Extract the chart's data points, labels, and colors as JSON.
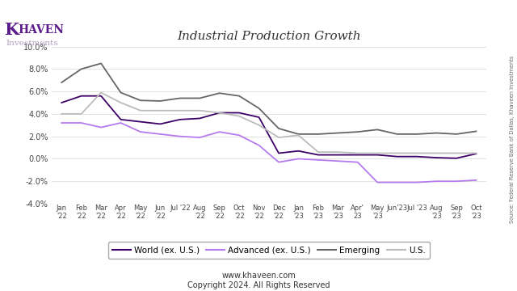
{
  "title": "Industrial Production Growth",
  "ylim": [
    -4.0,
    10.0
  ],
  "yticks": [
    -4.0,
    -2.0,
    0.0,
    2.0,
    4.0,
    6.0,
    8.0,
    10.0
  ],
  "x_labels": [
    "Jan\n'22",
    "Feb\n'22",
    "Mar\n'22",
    "Apr\n'22",
    "May\n'22",
    "Jun\n'22",
    "Jul '22",
    "Aug\n'22",
    "Sep\n'22",
    "Oct\n'22",
    "Nov\n'22",
    "Dec\n'22",
    "Jan\n'23",
    "Feb\n'23",
    "Mar\n'23",
    "Apr'\n23",
    "May\n'23",
    "Jun'23",
    "Jul '23",
    "Aug\n'23",
    "Sep\n'23",
    "Oct\n'23"
  ],
  "world_ex_us": [
    5.0,
    5.6,
    5.6,
    3.5,
    3.3,
    3.1,
    3.5,
    3.6,
    4.1,
    4.1,
    3.7,
    0.5,
    0.7,
    0.35,
    0.35,
    0.35,
    0.35,
    0.2,
    0.2,
    0.1,
    0.05,
    0.45
  ],
  "advanced_ex_us": [
    3.2,
    3.2,
    2.8,
    3.2,
    2.4,
    2.2,
    2.0,
    1.9,
    2.4,
    2.1,
    1.2,
    -0.3,
    0.0,
    -0.1,
    -0.2,
    -0.3,
    -2.1,
    -2.1,
    -2.1,
    -2.0,
    -2.0,
    -1.9
  ],
  "emerging": [
    6.8,
    8.0,
    8.5,
    5.9,
    5.2,
    5.15,
    5.4,
    5.4,
    5.85,
    5.6,
    4.5,
    2.7,
    2.2,
    2.2,
    2.3,
    2.4,
    2.6,
    2.2,
    2.2,
    2.3,
    2.2,
    2.45
  ],
  "us": [
    4.0,
    4.0,
    5.9,
    5.0,
    4.3,
    4.3,
    4.3,
    4.3,
    4.1,
    3.8,
    3.0,
    1.9,
    2.1,
    0.6,
    0.6,
    0.5,
    0.5,
    0.5,
    0.5,
    0.5,
    0.5,
    0.5
  ],
  "world_color": "#3d0066",
  "advanced_color": "#b57bee",
  "emerging_color": "#666666",
  "us_color": "#bbbbbb",
  "source_text": "Source: Federal Reserve Bank of Dallas, Khaveen Investments",
  "website": "www.khaveen.com",
  "copyright": "Copyright 2024. All Rights Reserved",
  "logo_text_K": "K",
  "logo_text_rest": "HAVEN",
  "logo_sub": "Investments",
  "logo_color": "#5a1a8a"
}
